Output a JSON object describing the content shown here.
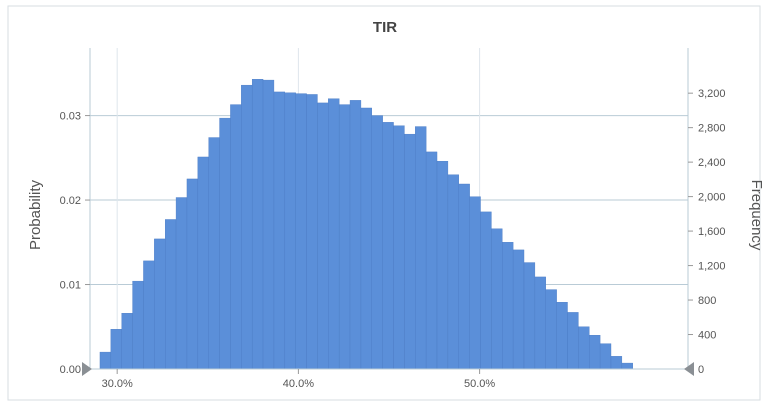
{
  "chart_data": {
    "type": "bar",
    "title": "TIR",
    "ylabel": "Probability",
    "y2label": "Frequency",
    "x_unit": "%",
    "x_ticks": [
      30,
      40,
      50
    ],
    "x_tick_labels": [
      "30.0%",
      "40.0%",
      "50.0%"
    ],
    "xlim": [
      28.5,
      61.5
    ],
    "ylim": [
      0,
      0.038
    ],
    "y_ticks": [
      0,
      0.01,
      0.02,
      0.03
    ],
    "y_tick_labels": [
      "0.00",
      "0.01",
      "0.02",
      "0.03"
    ],
    "y2_ticks": [
      0,
      400,
      800,
      1200,
      1600,
      2000,
      2400,
      2800,
      3200
    ],
    "y2_tick_labels": [
      "0",
      "400",
      "800",
      "1,200",
      "1,600",
      "2,000",
      "2,400",
      "2,800",
      "3,200"
    ],
    "bin_width": 0.6,
    "bins_start": [
      29.05,
      29.65,
      30.25,
      30.85,
      31.45,
      32.05,
      32.65,
      33.25,
      33.85,
      34.45,
      35.05,
      35.65,
      36.25,
      36.85,
      37.45,
      38.05,
      38.65,
      39.25,
      39.85,
      40.45,
      41.05,
      41.65,
      42.25,
      42.85,
      43.45,
      44.05,
      44.65,
      45.25,
      45.85,
      46.45,
      47.05,
      47.65,
      48.25,
      48.85,
      49.45,
      50.05,
      50.65,
      51.25,
      51.85,
      52.45,
      53.05,
      53.65,
      54.25,
      54.85,
      55.45,
      56.05,
      56.65,
      57.25,
      57.85
    ],
    "values": [
      0.002,
      0.0047,
      0.0066,
      0.0104,
      0.0128,
      0.0154,
      0.0177,
      0.0203,
      0.0225,
      0.0251,
      0.0274,
      0.0297,
      0.0313,
      0.0336,
      0.0343,
      0.0342,
      0.0328,
      0.0327,
      0.0326,
      0.0325,
      0.0315,
      0.032,
      0.0313,
      0.0318,
      0.0309,
      0.03,
      0.0292,
      0.0288,
      0.0278,
      0.0287,
      0.0257,
      0.0246,
      0.023,
      0.0219,
      0.0204,
      0.0186,
      0.0166,
      0.015,
      0.0141,
      0.0126,
      0.0109,
      0.0094,
      0.0079,
      0.0067,
      0.005,
      0.004,
      0.003,
      0.0015,
      0.0007
    ],
    "grid": true,
    "bar_color": "#5b8fd9",
    "bar_edge_color": "#4a7bc4",
    "grid_color": "#b9cbd6",
    "axis_color": "#b9cbd6",
    "marker_color": "#8a8f94"
  }
}
